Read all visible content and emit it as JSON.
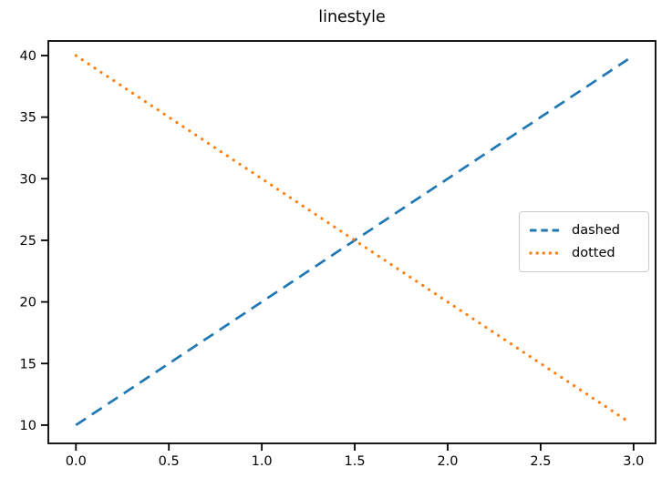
{
  "chart_data": {
    "type": "line",
    "title": "linestyle",
    "xlabel": "",
    "ylabel": "",
    "x": [
      0.0,
      2.97
    ],
    "series": [
      {
        "name": "dashed",
        "linestyle": "dashed",
        "color": "#1f77b4",
        "x": [
          0.0,
          2.97
        ],
        "y": [
          10.0,
          39.7
        ]
      },
      {
        "name": "dotted",
        "linestyle": "dotted",
        "color": "#ff7f0e",
        "x": [
          0.0,
          2.97
        ],
        "y": [
          40.0,
          10.3
        ]
      }
    ],
    "xticks": [
      0.0,
      0.5,
      1.0,
      1.5,
      2.0,
      2.5,
      3.0
    ],
    "xtick_labels": [
      "0.0",
      "0.5",
      "1.0",
      "1.5",
      "2.0",
      "2.5",
      "3.0"
    ],
    "yticks": [
      10,
      15,
      20,
      25,
      30,
      35,
      40
    ],
    "ytick_labels": [
      "10",
      "15",
      "20",
      "25",
      "30",
      "35",
      "40"
    ],
    "xlim": [
      -0.1485,
      3.1185
    ],
    "ylim": [
      8.515,
      41.185
    ],
    "grid": false,
    "legend": {
      "position": "center right",
      "entries": [
        "dashed",
        "dotted"
      ]
    },
    "colors": {
      "axes": "#000000",
      "text": "#000000",
      "legend_border": "#cccccc",
      "background": "#ffffff"
    }
  }
}
